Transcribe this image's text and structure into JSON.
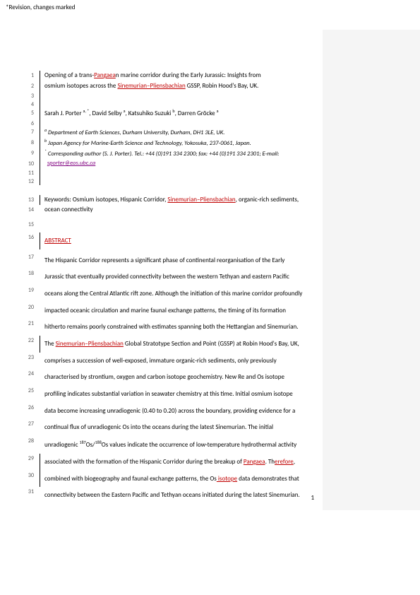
{
  "header_note": "*Revision, changes marked",
  "page_number": "1",
  "colors": {
    "tracked_change": "#c00000",
    "link": "#800080",
    "right_bar": "#f5f5f5",
    "text": "#000000"
  },
  "lines": [
    {
      "n": 1,
      "bar": true,
      "type": "title",
      "html": "Opening of a trans-<span class='ul-red'>Pangaea</span>n marine corridor during the Early Jurassic: Insights from"
    },
    {
      "n": 2,
      "bar": true,
      "type": "title",
      "html": "osmium isotopes across the <span class='ul-red'>Sinemurian–Pliensbachian</span> GSSP, Robin Hood's Bay, UK."
    },
    {
      "n": 3,
      "bar": true,
      "type": "empty"
    },
    {
      "n": 4,
      "bar": true,
      "type": "empty"
    },
    {
      "n": 5,
      "bar": true,
      "type": "auth",
      "html": "Sarah J. Porter <span class='sup'>a, *</span>, David Selby <span class='sup'>a</span>, Katsuhiko Suzuki <span class='sup'>b</span>, Darren Gröcke <span class='sup'>a</span>"
    },
    {
      "n": 6,
      "bar": true,
      "type": "empty"
    },
    {
      "n": 7,
      "bar": true,
      "type": "aff",
      "html": "<span class='sup'>a</span> Department of Earth Sciences, Durham University, Durham, DH1 3LE, UK."
    },
    {
      "n": 8,
      "bar": true,
      "type": "aff",
      "html": "<span class='sup'>b</span> Japan Agency for Marine-Earth Science and Technology, Yokosuka, 237-0061, Japan."
    },
    {
      "n": 9,
      "bar": true,
      "type": "aff",
      "html": "<span class='sup'>*</span> Corresponding author (S. J. Porter). Tel.: +44 (0)191 334 2300; fax: +44 (0)191 334 2301; E-mail:"
    },
    {
      "n": 10,
      "bar": true,
      "type": "aff",
      "html": "&nbsp;&nbsp;<span class='ul-purple'>sporter@eos.ubc.ca</span>"
    },
    {
      "n": 11,
      "bar": true,
      "type": "empty"
    },
    {
      "n": 12,
      "bar": true,
      "type": "empty"
    },
    {
      "n": 13,
      "bar": true,
      "type": "kw",
      "html": "Keywords: Osmium isotopes, Hispanic Corridor, <span class='ul-red'>Sinemurian–Pliensbachian</span>, organic-rich sediments,"
    },
    {
      "n": 14,
      "bar": false,
      "type": "kw",
      "html": "ocean connectivity"
    },
    {
      "n": 15,
      "bar": false,
      "type": "empty"
    },
    {
      "n": 16,
      "bar": true,
      "type": "abs-head",
      "html": "<span class='ul-red'>ABSTRACT</span>"
    },
    {
      "n": 17,
      "bar": false,
      "type": "abs",
      "html": "The Hispanic Corridor represents a significant phase of continental reorganisation of the Early"
    },
    {
      "n": 18,
      "bar": false,
      "type": "abs",
      "html": "Jurassic that eventually provided connectivity between the western Tethyan and eastern Pacific"
    },
    {
      "n": 19,
      "bar": false,
      "type": "abs",
      "html": "oceans along the Central Atlantic rift zone. Although the initiation of this marine corridor profoundly"
    },
    {
      "n": 20,
      "bar": false,
      "type": "abs",
      "html": "impacted oceanic circulation and marine faunal exchange patterns, the timing of its formation"
    },
    {
      "n": 21,
      "bar": false,
      "type": "abs",
      "html": "hitherto remains poorly constrained with estimates spanning both the Hettangian and Sinemurian."
    },
    {
      "n": 22,
      "bar": true,
      "type": "abs",
      "html": "The <span class='ul-red'>Sinemurian–Pliensbachian</span> Global Stratotype Section and Point (GSSP) at Robin Hood's Bay, UK,"
    },
    {
      "n": 23,
      "bar": false,
      "type": "abs",
      "html": "comprises a succession of well-exposed, immature organic-rich sediments, only previously"
    },
    {
      "n": 24,
      "bar": false,
      "type": "abs",
      "html": "characterised by strontium, oxygen and carbon isotope geochemistry. New Re and Os isotope"
    },
    {
      "n": 25,
      "bar": false,
      "type": "abs",
      "html": "profiling indicates substantial variation in seawater chemistry at this time. Initial osmium isotope"
    },
    {
      "n": 26,
      "bar": false,
      "type": "abs",
      "html": "data become increasing unradiogenic (0.40 to 0.20) across the boundary, providing evidence for a"
    },
    {
      "n": 27,
      "bar": false,
      "type": "abs",
      "html": "continual flux of unradiogenic Os into the oceans during the latest Sinemurian. The initial"
    },
    {
      "n": 28,
      "bar": false,
      "type": "abs",
      "html": "unradiogenic <span class='sup'>187</span>Os/<span class='sup'>188</span>Os values indicate the occurrence of low-temperature hydrothermal activity"
    },
    {
      "n": 29,
      "bar": true,
      "type": "abs",
      "html": "associated with the formation of the Hispanic Corridor during the breakup of <span class='ul-red'>Pangaea</span>. Th<span class='ul-red'>erefore</span>,"
    },
    {
      "n": 30,
      "bar": true,
      "type": "abs",
      "html": "combined with biogeography and faunal exchange patterns, the Os<span class='ul-red'>&nbsp;isotope</span> data demonstrates that"
    },
    {
      "n": 31,
      "bar": false,
      "type": "abs",
      "html": "connectivity between the Eastern Pacific and Tethyan oceans initiated during the latest Sinemurian."
    }
  ]
}
